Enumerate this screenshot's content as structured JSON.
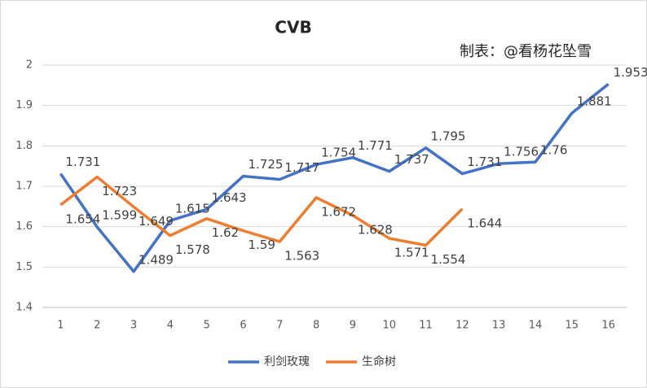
{
  "chart_data": {
    "type": "line",
    "title": "CVB",
    "annotation": "制表：@看杨花坠雪",
    "categories": [
      1,
      2,
      3,
      4,
      5,
      6,
      7,
      8,
      9,
      10,
      11,
      12,
      13,
      14,
      15,
      16
    ],
    "series": [
      {
        "name": "利剑玫瑰",
        "color": "#4472c4",
        "values": [
          1.731,
          1.599,
          1.489,
          1.615,
          1.643,
          1.725,
          1.717,
          1.754,
          1.771,
          1.737,
          1.795,
          1.731,
          1.756,
          1.76,
          1.881,
          1.953
        ]
      },
      {
        "name": "生命树",
        "color": "#ed7d31",
        "values": [
          1.654,
          1.723,
          1.649,
          1.578,
          1.62,
          1.59,
          1.563,
          1.672,
          1.628,
          1.571,
          1.554,
          1.644,
          null,
          null,
          null,
          null
        ]
      }
    ],
    "ylim": [
      1.4,
      2
    ],
    "yticks": [
      1.4,
      1.5,
      1.6,
      1.7,
      1.8,
      1.9,
      2
    ],
    "grid": true,
    "legend": "bottom"
  }
}
